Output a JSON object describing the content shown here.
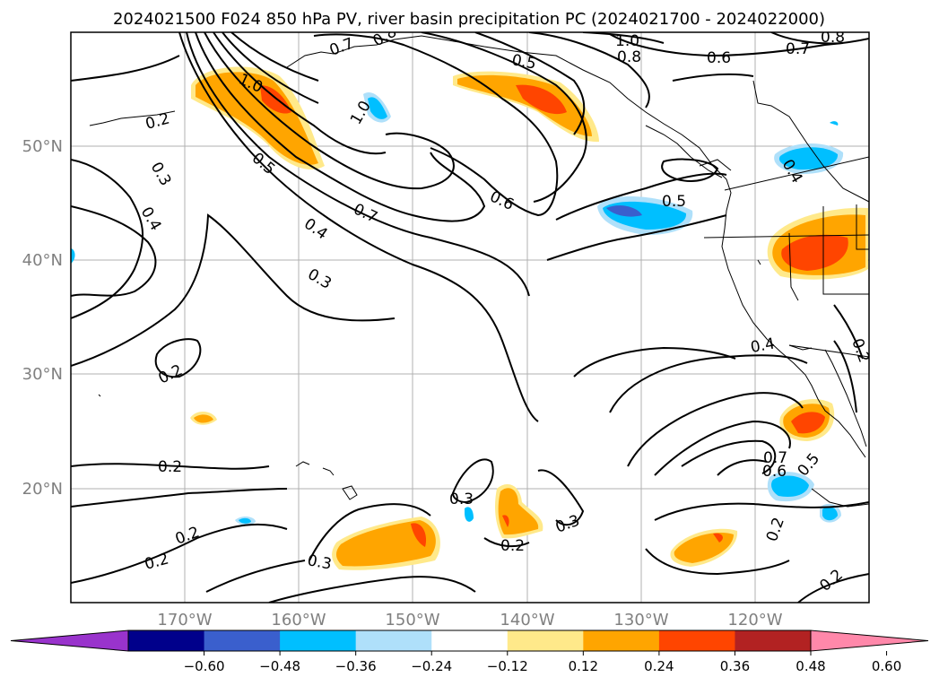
{
  "title": "2024021500 F024 850 hPa PV, river basin precipitation PC (2024021700 - 2024022000)",
  "lon_labels": [
    "170°W",
    "160°W",
    "150°W",
    "140°W",
    "130°W",
    "120°W"
  ],
  "lat_labels": [
    "50°N",
    "40°N",
    "30°N",
    "20°N"
  ],
  "colorbar": {
    "colors": [
      "#9933cc",
      "#00008b",
      "#3a5fcd",
      "#00bfff",
      "#afe0fa",
      "#ffffff",
      "#ffe98a",
      "#ffa500",
      "#ff4500",
      "#b22222",
      "#ff88aa"
    ],
    "tick_labels": [
      "−0.60",
      "−0.48",
      "−0.36",
      "−0.24",
      "−0.12",
      "0.12",
      "0.24",
      "0.36",
      "0.48",
      "0.60"
    ]
  },
  "contour_labels": [
    "1.0",
    "0.8",
    "0.7",
    "0.6",
    "0.5",
    "0.4",
    "0.3",
    "0.2"
  ]
}
